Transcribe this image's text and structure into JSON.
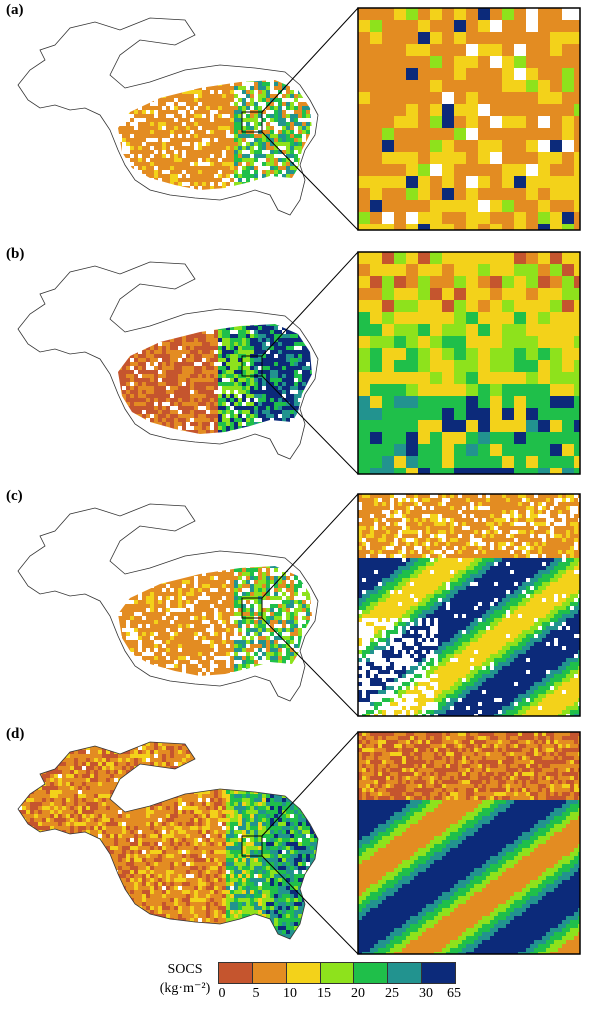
{
  "panels": [
    {
      "label": "(a)",
      "fill": "sparse",
      "zoom": "pixel-coarse"
    },
    {
      "label": "(b)",
      "fill": "dense",
      "zoom": "pixel-coarse"
    },
    {
      "label": "(c)",
      "fill": "sparse",
      "zoom": "fine"
    },
    {
      "label": "(d)",
      "fill": "full",
      "zoom": "fine"
    }
  ],
  "legend": {
    "title_line1": "SOCS",
    "title_line2": "(kg·m⁻²)",
    "ticks": [
      "0",
      "5",
      "10",
      "15",
      "20",
      "25",
      "30",
      "65"
    ],
    "colors": [
      "#c5552e",
      "#e38c22",
      "#f3d21a",
      "#8ee21c",
      "#1fbf4a",
      "#22938f",
      "#0c2a7a"
    ]
  }
}
